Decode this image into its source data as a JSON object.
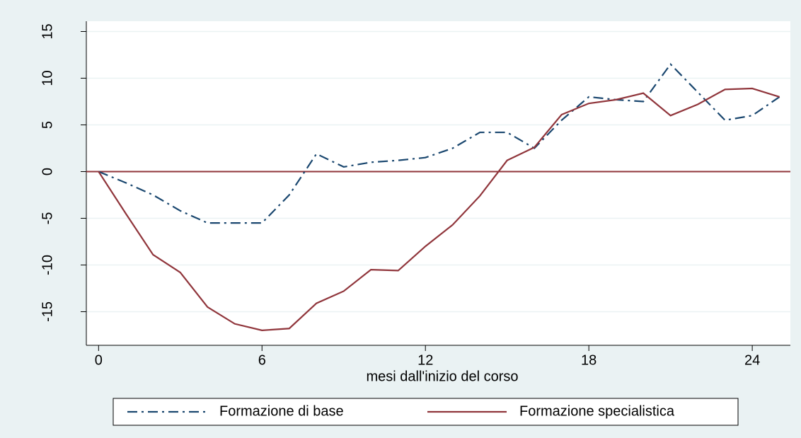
{
  "chart_data": {
    "type": "line",
    "x": [
      0,
      1,
      2,
      3,
      4,
      5,
      6,
      7,
      8,
      9,
      10,
      11,
      12,
      13,
      14,
      15,
      16,
      17,
      18,
      19,
      20,
      21,
      22,
      23,
      24,
      25
    ],
    "series": [
      {
        "name": "Formazione di base",
        "color": "#1a476f",
        "dash": "dashdot",
        "values": [
          0,
          -1.2,
          -2.5,
          -4.2,
          -5.5,
          -5.5,
          -5.5,
          -2.5,
          1.9,
          0.5,
          1.0,
          1.2,
          1.5,
          2.5,
          4.2,
          4.2,
          2.5,
          5.5,
          8.0,
          7.7,
          7.5,
          11.5,
          8.5,
          5.5,
          6.0,
          8.0
        ]
      },
      {
        "name": "Formazione specialistica",
        "color": "#90353b",
        "dash": "solid",
        "values": [
          0,
          -4.5,
          -8.9,
          -10.8,
          -14.5,
          -16.3,
          -17.0,
          -16.8,
          -14.1,
          -12.8,
          -10.5,
          -10.6,
          -8.0,
          -5.7,
          -2.6,
          1.2,
          2.6,
          6.1,
          7.3,
          7.7,
          8.4,
          6.0,
          7.2,
          8.8,
          8.9,
          8.0
        ]
      }
    ],
    "xlabel": "mesi dall'inizio del corso",
    "xlim": [
      -0.45,
      25.4
    ],
    "xticks": [
      0,
      6,
      12,
      18,
      24
    ],
    "ylim": [
      -18.6,
      16.1
    ],
    "yticks": [
      15,
      10,
      5,
      0,
      -5,
      -10,
      -15
    ],
    "hline": 0,
    "hline_color": "#90353b",
    "grid": true,
    "legend": "bottom"
  }
}
